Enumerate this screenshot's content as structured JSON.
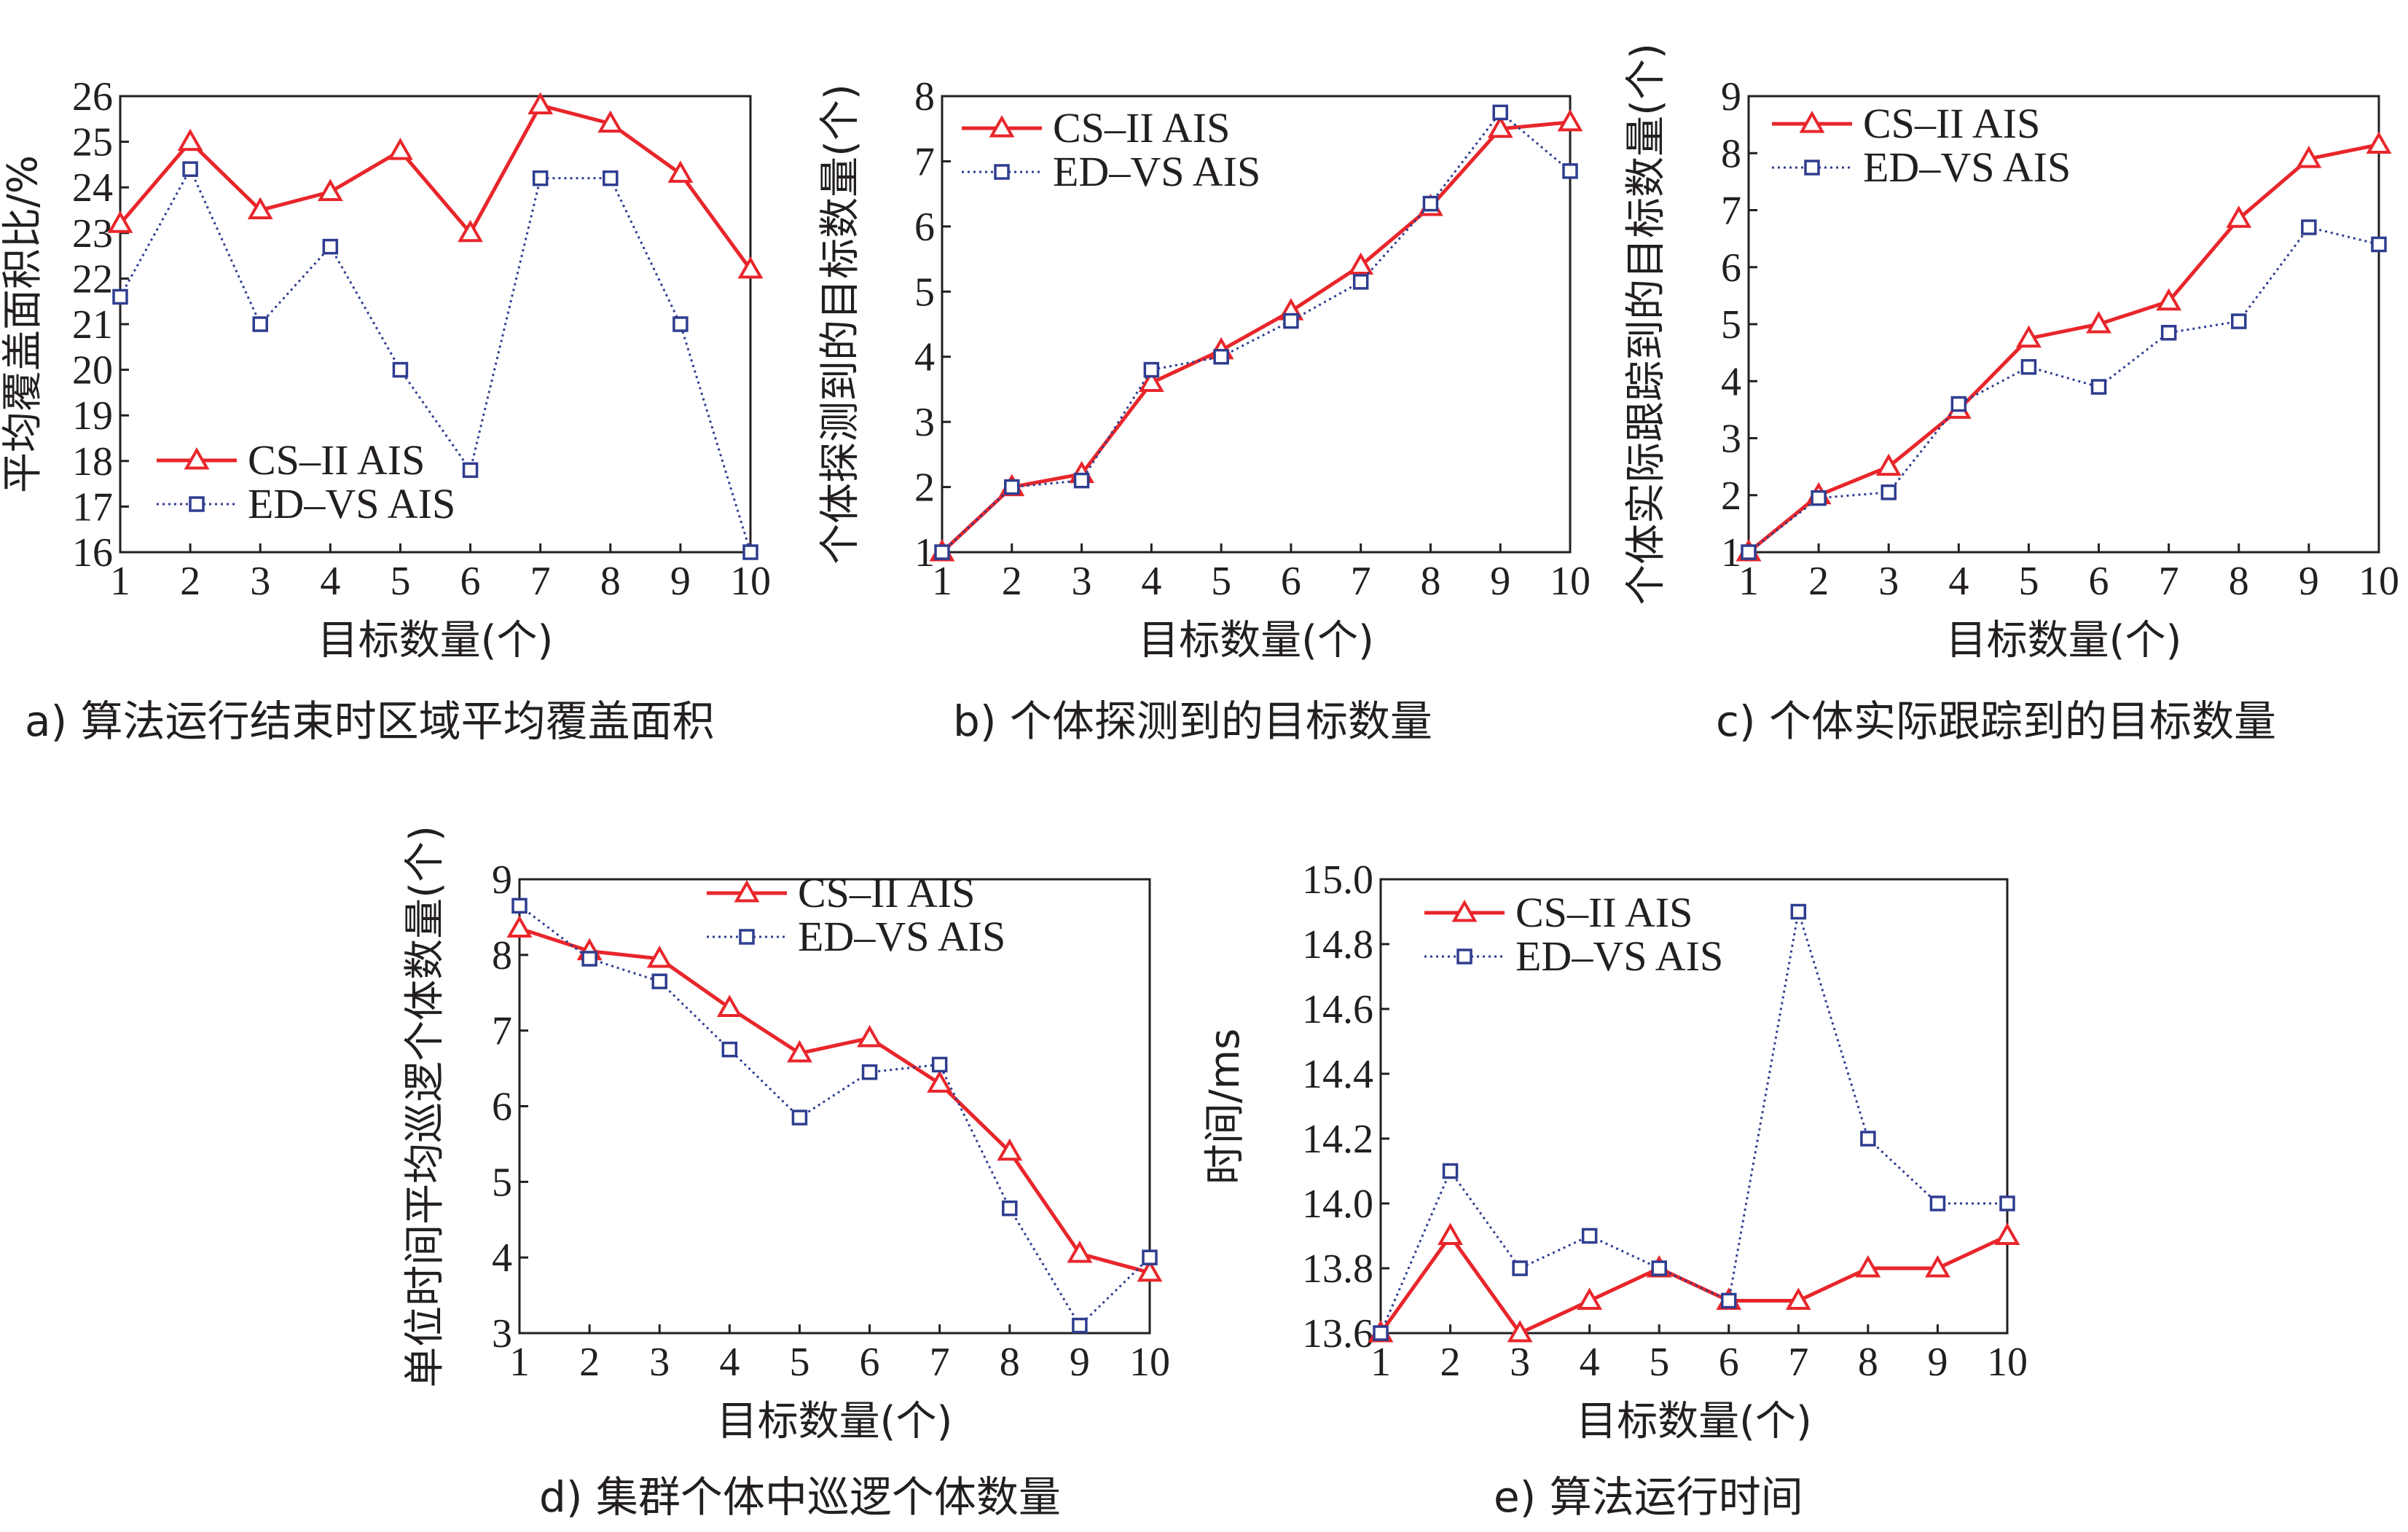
{
  "colors": {
    "series1": "#e8262b",
    "series2": "#2e3d8f",
    "axis": "#231f20"
  },
  "chart_data": [
    {
      "id": "a",
      "type": "line",
      "caption": "a) 算法运行结束时区域平均覆盖面积",
      "xlabel": "目标数量(个)",
      "ylabel": "平均覆盖面积比/%",
      "x": [
        1,
        2,
        3,
        4,
        5,
        6,
        7,
        8,
        9,
        10
      ],
      "xlim": [
        1,
        10
      ],
      "ylim": [
        16,
        26
      ],
      "yticks": [
        "16",
        "17",
        "18",
        "19",
        "20",
        "21",
        "22",
        "23",
        "24",
        "25",
        "26"
      ],
      "xticks": [
        "1",
        "2",
        "3",
        "4",
        "5",
        "6",
        "7",
        "8",
        "9",
        "10"
      ],
      "legend_position": "lower-left",
      "series": [
        {
          "name": "CS–II AIS",
          "marker": "triangle",
          "style": "solid",
          "values": [
            23.2,
            25.0,
            23.5,
            23.9,
            24.8,
            23.0,
            25.8,
            25.4,
            24.3,
            22.2
          ]
        },
        {
          "name": "ED–VS AIS",
          "marker": "square",
          "style": "dotted",
          "values": [
            21.6,
            24.4,
            21.0,
            22.7,
            20.0,
            17.8,
            24.2,
            24.2,
            21.0,
            16.0
          ]
        }
      ]
    },
    {
      "id": "b",
      "type": "line",
      "caption": "b) 个体探测到的目标数量",
      "xlabel": "目标数量(个)",
      "ylabel": "个体探测到的目标数量(个)",
      "x": [
        1,
        2,
        3,
        4,
        5,
        6,
        7,
        8,
        9,
        10
      ],
      "xlim": [
        1,
        10
      ],
      "ylim": [
        1,
        8
      ],
      "yticks": [
        "1",
        "2",
        "3",
        "4",
        "5",
        "6",
        "7",
        "8"
      ],
      "xticks": [
        "1",
        "2",
        "3",
        "4",
        "5",
        "6",
        "7",
        "8",
        "9",
        "10"
      ],
      "legend_position": "top-left",
      "series": [
        {
          "name": "CS–II AIS",
          "marker": "triangle",
          "style": "solid",
          "values": [
            1.0,
            2.0,
            2.2,
            3.6,
            4.1,
            4.7,
            5.4,
            6.3,
            7.5,
            7.6
          ]
        },
        {
          "name": "ED–VS AIS",
          "marker": "square",
          "style": "dotted",
          "values": [
            1.0,
            2.0,
            2.1,
            3.8,
            4.0,
            4.55,
            5.15,
            6.35,
            7.75,
            6.85
          ]
        }
      ]
    },
    {
      "id": "c",
      "type": "line",
      "caption": "c) 个体实际跟踪到的目标数量",
      "xlabel": "目标数量(个)",
      "ylabel": "个体实际跟踪到的目标数量(个)",
      "x": [
        1,
        2,
        3,
        4,
        5,
        6,
        7,
        8,
        9,
        10
      ],
      "xlim": [
        1,
        10
      ],
      "ylim": [
        1,
        9
      ],
      "yticks": [
        "1",
        "2",
        "3",
        "4",
        "5",
        "6",
        "7",
        "8",
        "9"
      ],
      "xticks": [
        "1",
        "2",
        "3",
        "4",
        "5",
        "6",
        "7",
        "8",
        "9",
        "10"
      ],
      "legend_position": "top-left",
      "series": [
        {
          "name": "CS–II AIS",
          "marker": "triangle",
          "style": "solid",
          "values": [
            1.0,
            2.0,
            2.5,
            3.5,
            4.75,
            5.0,
            5.4,
            6.85,
            7.9,
            8.15
          ]
        },
        {
          "name": "ED–VS AIS",
          "marker": "square",
          "style": "dotted",
          "values": [
            1.0,
            1.95,
            2.05,
            3.6,
            4.25,
            3.9,
            4.85,
            5.05,
            6.7,
            6.4
          ]
        }
      ]
    },
    {
      "id": "d",
      "type": "line",
      "caption": "d) 集群个体中巡逻个体数量",
      "xlabel": "目标数量(个)",
      "ylabel": "单位时间平均巡逻个体数量(个)",
      "x": [
        1,
        2,
        3,
        4,
        5,
        6,
        7,
        8,
        9,
        10
      ],
      "xlim": [
        1,
        10
      ],
      "ylim": [
        3,
        9
      ],
      "yticks": [
        "3",
        "4",
        "5",
        "6",
        "7",
        "8",
        "9"
      ],
      "xticks": [
        "1",
        "2",
        "3",
        "4",
        "5",
        "6",
        "7",
        "8",
        "9",
        "10"
      ],
      "legend_position": "top-right",
      "series": [
        {
          "name": "CS–II AIS",
          "marker": "triangle",
          "style": "solid",
          "values": [
            8.35,
            8.05,
            7.95,
            7.3,
            6.7,
            6.9,
            6.3,
            5.4,
            4.05,
            3.8
          ]
        },
        {
          "name": "ED–VS AIS",
          "marker": "square",
          "style": "dotted",
          "values": [
            8.65,
            7.95,
            7.65,
            6.75,
            5.85,
            6.45,
            6.55,
            4.65,
            3.1,
            4.0
          ]
        }
      ]
    },
    {
      "id": "e",
      "type": "line",
      "caption": "e) 算法运行时间",
      "xlabel": "目标数量(个)",
      "ylabel": "时间/ms",
      "x": [
        1,
        2,
        3,
        4,
        5,
        6,
        7,
        8,
        9,
        10
      ],
      "xlim": [
        1,
        10
      ],
      "ylim": [
        13.6,
        15.0
      ],
      "yticks": [
        "13.6",
        "13.8",
        "14.0",
        "14.2",
        "14.4",
        "14.6",
        "14.8",
        "15.0"
      ],
      "xticks": [
        "1",
        "2",
        "3",
        "4",
        "5",
        "6",
        "7",
        "8",
        "9",
        "10"
      ],
      "legend_position": "top-left",
      "series": [
        {
          "name": "CS–II AIS",
          "marker": "triangle",
          "style": "solid",
          "values": [
            13.6,
            13.9,
            13.6,
            13.7,
            13.8,
            13.7,
            13.7,
            13.8,
            13.8,
            13.9
          ]
        },
        {
          "name": "ED–VS AIS",
          "marker": "square",
          "style": "dotted",
          "values": [
            13.6,
            14.1,
            13.8,
            13.9,
            13.8,
            13.7,
            14.9,
            14.2,
            14.0,
            14.0
          ]
        }
      ]
    }
  ]
}
